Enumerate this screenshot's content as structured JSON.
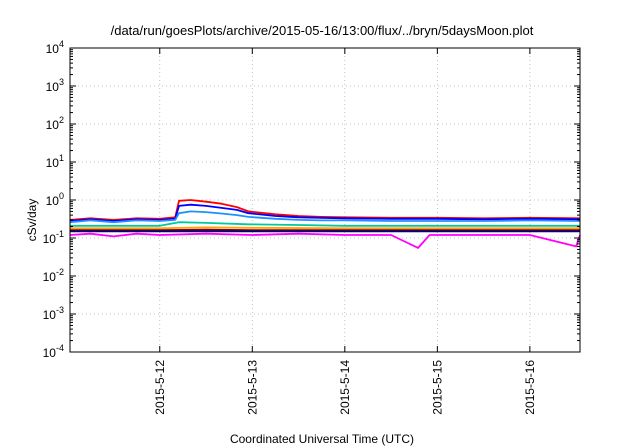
{
  "chart_data": {
    "type": "line",
    "title": "/data/run/goesPlots/archive/2015-05-16/13:00/flux/../bryn/5daysMoon.plot",
    "xlabel": "Coordinated Universal Time (UTC)",
    "ylabel": "cSv/day",
    "y_scale": "log",
    "ylim": [
      0.0001,
      10000
    ],
    "xlim": [
      "2015-05-11T00:43",
      "2015-05-16T13:00"
    ],
    "grid": true,
    "x_ticks": [
      {
        "x": "2015-05-12",
        "label": "2015-5-12"
      },
      {
        "x": "2015-05-13",
        "label": "2015-5-13"
      },
      {
        "x": "2015-05-14",
        "label": "2015-5-14"
      },
      {
        "x": "2015-05-15",
        "label": "2015-5-15"
      },
      {
        "x": "2015-05-16",
        "label": "2015-5-16"
      }
    ],
    "y_ticks": [
      {
        "value": 0.0001,
        "base": "10",
        "exp": "-4"
      },
      {
        "value": 0.001,
        "base": "10",
        "exp": "-3"
      },
      {
        "value": 0.01,
        "base": "10",
        "exp": "-2"
      },
      {
        "value": 0.1,
        "base": "10",
        "exp": "-1"
      },
      {
        "value": 1,
        "base": "10",
        "exp": "0"
      },
      {
        "value": 10,
        "base": "10",
        "exp": "1"
      },
      {
        "value": 100,
        "base": "10",
        "exp": "2"
      },
      {
        "value": 1000,
        "base": "10",
        "exp": "3"
      },
      {
        "value": 10000,
        "base": "10",
        "exp": "4"
      }
    ],
    "series": [
      {
        "color": "#ff0000",
        "values": [
          [
            "2015-05-11T00:43",
            0.3
          ],
          [
            "2015-05-11T06:00",
            0.33
          ],
          [
            "2015-05-11T12:00",
            0.3
          ],
          [
            "2015-05-11T18:00",
            0.33
          ],
          [
            "2015-05-12T00:00",
            0.32
          ],
          [
            "2015-05-12T04:00",
            0.35
          ],
          [
            "2015-05-12T05:00",
            0.95
          ],
          [
            "2015-05-12T08:00",
            1.0
          ],
          [
            "2015-05-12T12:00",
            0.9
          ],
          [
            "2015-05-12T16:00",
            0.8
          ],
          [
            "2015-05-12T20:00",
            0.65
          ],
          [
            "2015-05-12T23:00",
            0.5
          ],
          [
            "2015-05-13T06:00",
            0.42
          ],
          [
            "2015-05-13T12:00",
            0.38
          ],
          [
            "2015-05-13T18:00",
            0.36
          ],
          [
            "2015-05-14T00:00",
            0.35
          ],
          [
            "2015-05-14T12:00",
            0.34
          ],
          [
            "2015-05-15T00:00",
            0.34
          ],
          [
            "2015-05-15T12:00",
            0.33
          ],
          [
            "2015-05-16T00:00",
            0.34
          ],
          [
            "2015-05-16T13:00",
            0.33
          ]
        ]
      },
      {
        "color": "#0000ff",
        "values": [
          [
            "2015-05-11T00:43",
            0.28
          ],
          [
            "2015-05-11T06:00",
            0.31
          ],
          [
            "2015-05-11T12:00",
            0.28
          ],
          [
            "2015-05-11T18:00",
            0.31
          ],
          [
            "2015-05-12T00:00",
            0.3
          ],
          [
            "2015-05-12T04:00",
            0.32
          ],
          [
            "2015-05-12T05:00",
            0.7
          ],
          [
            "2015-05-12T08:00",
            0.75
          ],
          [
            "2015-05-12T12:00",
            0.7
          ],
          [
            "2015-05-12T16:00",
            0.62
          ],
          [
            "2015-05-12T20:00",
            0.55
          ],
          [
            "2015-05-12T23:00",
            0.45
          ],
          [
            "2015-05-13T06:00",
            0.38
          ],
          [
            "2015-05-13T12:00",
            0.35
          ],
          [
            "2015-05-13T18:00",
            0.34
          ],
          [
            "2015-05-14T00:00",
            0.33
          ],
          [
            "2015-05-14T12:00",
            0.32
          ],
          [
            "2015-05-15T00:00",
            0.32
          ],
          [
            "2015-05-15T12:00",
            0.31
          ],
          [
            "2015-05-16T00:00",
            0.32
          ],
          [
            "2015-05-16T13:00",
            0.31
          ]
        ]
      },
      {
        "color": "#1e90ff",
        "values": [
          [
            "2015-05-11T00:43",
            0.26
          ],
          [
            "2015-05-11T06:00",
            0.29
          ],
          [
            "2015-05-11T12:00",
            0.26
          ],
          [
            "2015-05-11T18:00",
            0.29
          ],
          [
            "2015-05-12T00:00",
            0.28
          ],
          [
            "2015-05-12T04:00",
            0.3
          ],
          [
            "2015-05-12T05:00",
            0.45
          ],
          [
            "2015-05-12T08:00",
            0.5
          ],
          [
            "2015-05-12T12:00",
            0.48
          ],
          [
            "2015-05-12T16:00",
            0.44
          ],
          [
            "2015-05-12T20:00",
            0.4
          ],
          [
            "2015-05-12T23:00",
            0.36
          ],
          [
            "2015-05-13T06:00",
            0.32
          ],
          [
            "2015-05-13T12:00",
            0.3
          ],
          [
            "2015-05-13T18:00",
            0.29
          ],
          [
            "2015-05-14T00:00",
            0.29
          ],
          [
            "2015-05-14T12:00",
            0.28
          ],
          [
            "2015-05-15T00:00",
            0.28
          ],
          [
            "2015-05-15T12:00",
            0.28
          ],
          [
            "2015-05-16T00:00",
            0.29
          ],
          [
            "2015-05-16T13:00",
            0.28
          ]
        ]
      },
      {
        "color": "#00c8a0",
        "values": [
          [
            "2015-05-11T00:43",
            0.21
          ],
          [
            "2015-05-11T12:00",
            0.21
          ],
          [
            "2015-05-12T00:00",
            0.21
          ],
          [
            "2015-05-12T05:00",
            0.26
          ],
          [
            "2015-05-12T12:00",
            0.25
          ],
          [
            "2015-05-12T23:00",
            0.23
          ],
          [
            "2015-05-13T12:00",
            0.22
          ],
          [
            "2015-05-14T00:00",
            0.21
          ],
          [
            "2015-05-15T00:00",
            0.21
          ],
          [
            "2015-05-16T00:00",
            0.21
          ],
          [
            "2015-05-16T13:00",
            0.21
          ]
        ]
      },
      {
        "color": "#ffa500",
        "values": [
          [
            "2015-05-11T00:43",
            0.18
          ],
          [
            "2015-05-12T00:00",
            0.18
          ],
          [
            "2015-05-12T12:00",
            0.19
          ],
          [
            "2015-05-13T00:00",
            0.185
          ],
          [
            "2015-05-14T00:00",
            0.18
          ],
          [
            "2015-05-15T00:00",
            0.18
          ],
          [
            "2015-05-16T13:00",
            0.18
          ]
        ]
      },
      {
        "color": "#8b0000",
        "values": [
          [
            "2015-05-11T00:43",
            0.16
          ],
          [
            "2015-05-12T00:00",
            0.16
          ],
          [
            "2015-05-12T12:00",
            0.165
          ],
          [
            "2015-05-13T00:00",
            0.16
          ],
          [
            "2015-05-14T00:00",
            0.16
          ],
          [
            "2015-05-15T00:00",
            0.16
          ],
          [
            "2015-05-16T13:00",
            0.16
          ]
        ]
      },
      {
        "color": "#000080",
        "values": [
          [
            "2015-05-11T00:43",
            0.15
          ],
          [
            "2015-05-12T00:00",
            0.15
          ],
          [
            "2015-05-13T00:00",
            0.15
          ],
          [
            "2015-05-14T00:00",
            0.15
          ],
          [
            "2015-05-15T00:00",
            0.15
          ],
          [
            "2015-05-16T13:00",
            0.15
          ]
        ]
      },
      {
        "color": "#ff00ff",
        "values": [
          [
            "2015-05-11T00:43",
            0.12
          ],
          [
            "2015-05-11T06:00",
            0.13
          ],
          [
            "2015-05-11T12:00",
            0.11
          ],
          [
            "2015-05-11T18:00",
            0.13
          ],
          [
            "2015-05-12T00:00",
            0.12
          ],
          [
            "2015-05-12T12:00",
            0.13
          ],
          [
            "2015-05-13T00:00",
            0.12
          ],
          [
            "2015-05-13T12:00",
            0.13
          ],
          [
            "2015-05-14T00:00",
            0.12
          ],
          [
            "2015-05-14T12:00",
            0.12
          ],
          [
            "2015-05-14T19:00",
            0.055
          ],
          [
            "2015-05-14T22:00",
            0.12
          ],
          [
            "2015-05-15T00:00",
            0.12
          ],
          [
            "2015-05-15T12:00",
            0.12
          ],
          [
            "2015-05-16T00:00",
            0.12
          ],
          [
            "2015-05-16T12:00",
            0.06
          ],
          [
            "2015-05-16T13:00",
            0.12
          ]
        ]
      }
    ]
  }
}
